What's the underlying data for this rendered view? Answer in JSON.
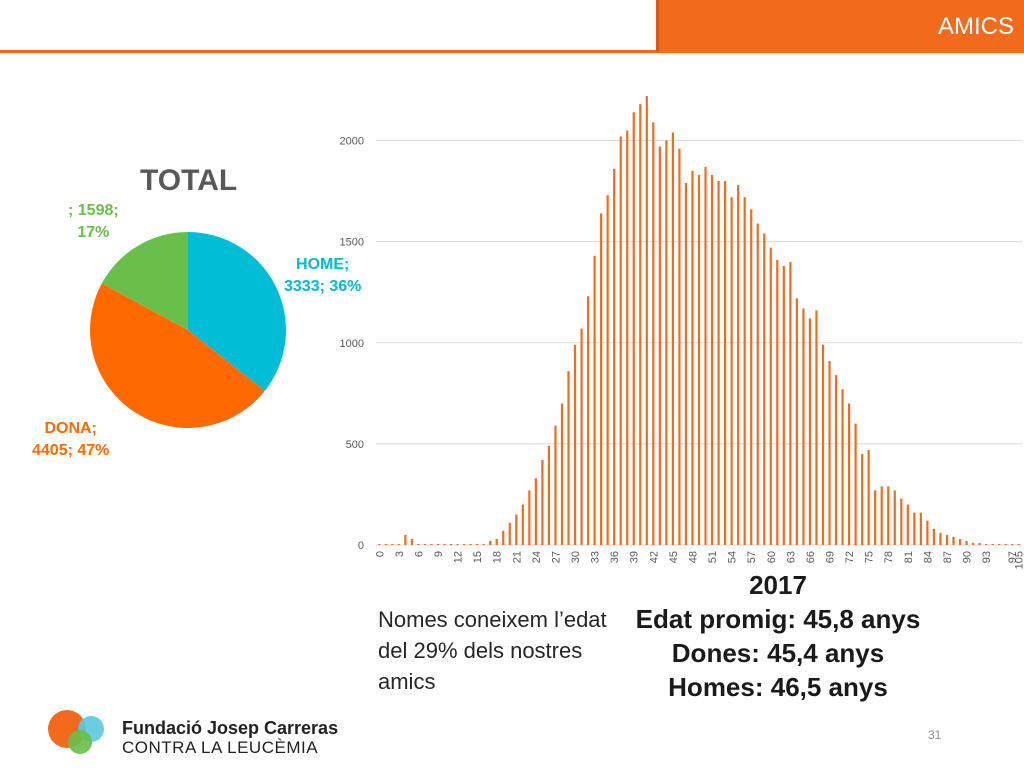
{
  "header": {
    "section_label": "AMICS",
    "accent_color": "#f26b1d"
  },
  "chart_data": [
    {
      "type": "pie",
      "title": "TOTAL",
      "slices": [
        {
          "name": "HOME",
          "value": 3333,
          "percent": 36,
          "color": "#00bcd4",
          "label_line1": "HOME;",
          "label_line2": "3333; 36%"
        },
        {
          "name": "DONA",
          "value": 4405,
          "percent": 47,
          "color": "#ff6a00",
          "label_line1": "DONA;",
          "label_line2": "4405; 47%"
        },
        {
          "name": "",
          "value": 1598,
          "percent": 17,
          "color": "#6abf4b",
          "label_line1": "; 1598;",
          "label_line2": "17%"
        }
      ]
    },
    {
      "type": "bar",
      "bar_color": "#f26b1d",
      "ylim": [
        0,
        2250
      ],
      "yticks": [
        0,
        500,
        1000,
        1500,
        2000
      ],
      "x_tick_labels": [
        "0",
        "3",
        "6",
        "9",
        "12",
        "15",
        "18",
        "21",
        "24",
        "27",
        "30",
        "33",
        "36",
        "39",
        "42",
        "45",
        "48",
        "51",
        "54",
        "57",
        "60",
        "63",
        "66",
        "69",
        "72",
        "75",
        "78",
        "81",
        "84",
        "87",
        "90",
        "93",
        "97",
        "105"
      ],
      "x": [
        0,
        1,
        2,
        3,
        4,
        5,
        6,
        7,
        8,
        9,
        10,
        11,
        12,
        13,
        14,
        15,
        16,
        17,
        18,
        19,
        20,
        21,
        22,
        23,
        24,
        25,
        26,
        27,
        28,
        29,
        30,
        31,
        32,
        33,
        34,
        35,
        36,
        37,
        38,
        39,
        40,
        41,
        42,
        43,
        44,
        45,
        46,
        47,
        48,
        49,
        50,
        51,
        52,
        53,
        54,
        55,
        56,
        57,
        58,
        59,
        60,
        61,
        62,
        63,
        64,
        65,
        66,
        67,
        68,
        69,
        70,
        71,
        72,
        73,
        74,
        75,
        76,
        77,
        78,
        79,
        80,
        81,
        82,
        83,
        84,
        85,
        86,
        87,
        88,
        89,
        90,
        91,
        92,
        93,
        94,
        95,
        96,
        97,
        105
      ],
      "values": [
        5,
        5,
        5,
        5,
        50,
        30,
        5,
        5,
        5,
        5,
        5,
        5,
        5,
        5,
        5,
        5,
        5,
        20,
        30,
        70,
        110,
        150,
        200,
        270,
        330,
        420,
        490,
        590,
        700,
        860,
        990,
        1070,
        1230,
        1430,
        1640,
        1730,
        1860,
        2020,
        2050,
        2140,
        2180,
        2220,
        2090,
        1970,
        2000,
        2040,
        1960,
        1790,
        1850,
        1830,
        1870,
        1830,
        1800,
        1800,
        1720,
        1780,
        1720,
        1660,
        1590,
        1540,
        1470,
        1410,
        1380,
        1400,
        1220,
        1170,
        1120,
        1160,
        990,
        910,
        840,
        770,
        700,
        600,
        450,
        470,
        270,
        290,
        290,
        270,
        230,
        200,
        160,
        160,
        120,
        80,
        60,
        50,
        40,
        30,
        20,
        10,
        10,
        5,
        5,
        5,
        5,
        5,
        5
      ]
    }
  ],
  "summary": {
    "note": "Nomes coneixem l’edat del 29% dels nostres amics",
    "year": "2017",
    "avg_age": "Edat promig: 45,8 anys",
    "women": "Dones: 45,4 anys",
    "men": "Homes: 46,5 anys"
  },
  "footer": {
    "org_name": "Fundació Josep Carreras",
    "org_sub": "CONTRA LA LEUCÈMIA",
    "page_number": "31"
  }
}
